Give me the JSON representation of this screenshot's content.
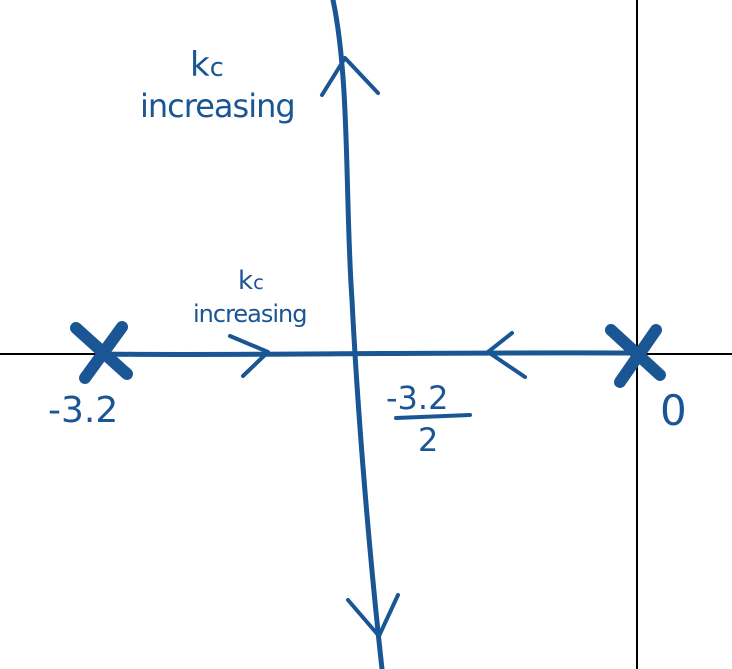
{
  "diagram": {
    "colors": {
      "ink": "#1a5594",
      "axes": "#000000",
      "background": "#ffffff"
    },
    "annotations": {
      "upper_gain_symbol": "k",
      "upper_gain_subscript": "c",
      "upper_gain_text": "increasing",
      "real_axis_gain_symbol": "k",
      "real_axis_gain_subscript": "c",
      "real_axis_gain_text": "increasing"
    },
    "poles": [
      {
        "label": "-3.2",
        "value": -3.2
      },
      {
        "label": "0",
        "value": 0
      }
    ],
    "centroid": {
      "numerator": "-3.2",
      "denominator": "2",
      "value": -1.6
    },
    "branches": [
      {
        "from": "-3.2",
        "direction": "right",
        "toward": "breakaway"
      },
      {
        "from": "0",
        "direction": "left",
        "toward": "breakaway"
      },
      {
        "from": "breakaway",
        "direction": "up",
        "toward": "+j infinity"
      },
      {
        "from": "breakaway",
        "direction": "down",
        "toward": "-j infinity"
      }
    ]
  }
}
